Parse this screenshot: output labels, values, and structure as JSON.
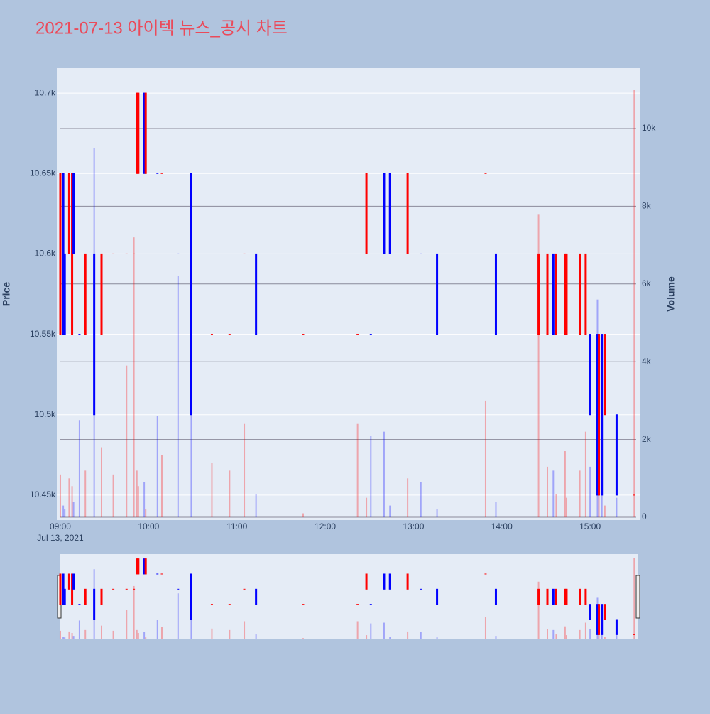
{
  "chart_data": {
    "type": "candlestick",
    "title": "2021-07-13 아이텍 뉴스_공시 차트",
    "y_label": "Price",
    "y2_label": "Volume",
    "x_sublabel": "Jul 13, 2021",
    "increasing_color": "#ff0000",
    "decreasing_color": "#0000ff",
    "x": [
      0,
      2,
      3,
      6,
      8,
      9,
      13,
      17,
      23,
      28,
      36,
      45,
      50,
      52,
      53,
      57,
      58,
      66,
      69,
      80,
      89,
      103,
      115,
      125,
      133,
      165,
      202,
      208,
      211,
      220,
      224,
      236,
      245,
      256,
      289,
      296,
      325,
      331,
      335,
      337,
      343,
      344,
      353,
      357,
      360,
      365,
      366,
      368,
      370,
      378,
      390
    ],
    "open": [
      10550,
      10650,
      10600,
      10600,
      10550,
      10650,
      10550,
      10550,
      10600,
      10550,
      10600,
      10600,
      10600,
      10650,
      10650,
      10700,
      10650,
      10650,
      10650,
      10600,
      10650,
      10550,
      10550,
      10600,
      10600,
      10550,
      10550,
      10600,
      10550,
      10650,
      10650,
      10600,
      10600,
      10600,
      10650,
      10600,
      10550,
      10550,
      10600,
      10550,
      10550,
      10550,
      10550,
      10550,
      10550,
      10550,
      10450,
      10550,
      10500,
      10500,
      10450
    ],
    "high": [
      10650,
      10650,
      10600,
      10650,
      10650,
      10650,
      10550,
      10600,
      10600,
      10600,
      10600,
      10600,
      10600,
      10700,
      10700,
      10700,
      10700,
      10650,
      10650,
      10600,
      10650,
      10550,
      10550,
      10600,
      10600,
      10550,
      10550,
      10650,
      10550,
      10650,
      10650,
      10650,
      10600,
      10600,
      10650,
      10600,
      10600,
      10600,
      10600,
      10600,
      10600,
      10600,
      10600,
      10600,
      10550,
      10550,
      10550,
      10550,
      10550,
      10500,
      10450
    ],
    "low": [
      10550,
      10550,
      10550,
      10600,
      10550,
      10600,
      10550,
      10550,
      10500,
      10550,
      10600,
      10600,
      10600,
      10650,
      10650,
      10650,
      10650,
      10650,
      10650,
      10600,
      10500,
      10550,
      10550,
      10600,
      10550,
      10550,
      10550,
      10600,
      10550,
      10600,
      10600,
      10600,
      10600,
      10550,
      10650,
      10550,
      10550,
      10550,
      10550,
      10550,
      10550,
      10550,
      10550,
      10550,
      10500,
      10450,
      10450,
      10450,
      10500,
      10450,
      10450
    ],
    "close": [
      10650,
      10550,
      10550,
      10650,
      10650,
      10600,
      10550,
      10600,
      10500,
      10600,
      10600,
      10600,
      10600,
      10700,
      10700,
      10650,
      10700,
      10650,
      10650,
      10600,
      10500,
      10550,
      10550,
      10600,
      10550,
      10550,
      10550,
      10650,
      10550,
      10600,
      10600,
      10650,
      10600,
      10550,
      10650,
      10550,
      10600,
      10600,
      10550,
      10600,
      10600,
      10600,
      10600,
      10600,
      10500,
      10450,
      10550,
      10450,
      10550,
      10450,
      10450
    ],
    "volume": [
      1100,
      300,
      200,
      1000,
      800,
      400,
      2500,
      1200,
      9500,
      1800,
      1100,
      3900,
      7200,
      1200,
      800,
      900,
      200,
      2600,
      1600,
      6200,
      4000,
      1400,
      1200,
      2400,
      600,
      100,
      2400,
      500,
      2100,
      2200,
      300,
      1000,
      900,
      200,
      3000,
      400,
      7800,
      1300,
      1200,
      600,
      1700,
      500,
      1200,
      2200,
      1300,
      5600,
      800,
      2000,
      300,
      500,
      11000
    ],
    "xlim": [
      -2.4,
      394.2
    ],
    "xticks": [
      {
        "value": 0,
        "label": "09:00"
      },
      {
        "value": 60,
        "label": "10:00"
      },
      {
        "value": 120,
        "label": "11:00"
      },
      {
        "value": 180,
        "label": "12:00"
      },
      {
        "value": 240,
        "label": "13:00"
      },
      {
        "value": 300,
        "label": "14:00"
      },
      {
        "value": 360,
        "label": "15:00"
      }
    ],
    "ylim": [
      10434.5,
      10715.5
    ],
    "yticks": [
      {
        "value": 10450,
        "label": "10.45k"
      },
      {
        "value": 10500,
        "label": "10.5k"
      },
      {
        "value": 10550,
        "label": "10.55k"
      },
      {
        "value": 10600,
        "label": "10.6k"
      },
      {
        "value": 10650,
        "label": "10.65k"
      },
      {
        "value": 10700,
        "label": "10.7k"
      }
    ],
    "y2lim": [
      -73,
      11554
    ],
    "y2ticks": [
      0,
      {
        "value": 2000,
        "label": "2k"
      },
      {
        "value": 4000,
        "label": "4k"
      },
      {
        "value": 6000,
        "label": "6k"
      },
      {
        "value": 8000,
        "label": "8k"
      },
      {
        "value": 10000,
        "label": "10k"
      }
    ],
    "grid": true,
    "rangeslider": true
  }
}
